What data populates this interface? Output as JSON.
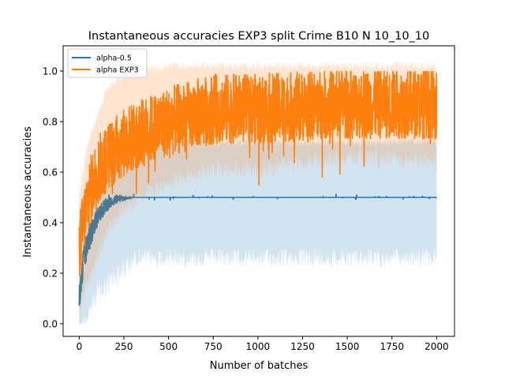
{
  "chart_data": {
    "type": "line",
    "title": "Instantaneous accuracies EXP3 split Crime B10 N 10_10_10",
    "xlabel": "Number of batches",
    "ylabel": "Instantaneous accuracies",
    "xlim": [
      -90,
      2100
    ],
    "ylim": [
      -0.05,
      1.1
    ],
    "xticks": [
      0,
      250,
      500,
      750,
      1000,
      1250,
      1500,
      1750,
      2000
    ],
    "yticks": [
      0.0,
      0.2,
      0.4,
      0.6,
      0.8,
      1.0
    ],
    "xtick_labels": [
      "0",
      "250",
      "500",
      "750",
      "1000",
      "1250",
      "1500",
      "1750",
      "2000"
    ],
    "ytick_labels": [
      "0.0",
      "0.2",
      "0.4",
      "0.6",
      "0.8",
      "1.0"
    ],
    "grid": false,
    "legend_position": "top-left",
    "series": [
      {
        "name": "alpha-0.5",
        "color": "#1f77b4",
        "description_points": [
          {
            "x": 0,
            "mean": 0.1,
            "low": 0.0,
            "high": 0.3
          },
          {
            "x": 25,
            "mean": 0.25,
            "low": 0.05,
            "high": 0.45
          },
          {
            "x": 50,
            "mean": 0.33,
            "low": 0.1,
            "high": 0.5
          },
          {
            "x": 100,
            "mean": 0.42,
            "low": 0.18,
            "high": 0.55
          },
          {
            "x": 150,
            "mean": 0.47,
            "low": 0.2,
            "high": 0.6
          },
          {
            "x": 200,
            "mean": 0.49,
            "low": 0.25,
            "high": 0.65
          },
          {
            "x": 300,
            "mean": 0.5,
            "low": 0.3,
            "high": 0.7
          },
          {
            "x": 1000,
            "mean": 0.5,
            "low": 0.3,
            "high": 0.7
          },
          {
            "x": 2000,
            "mean": 0.5,
            "low": 0.3,
            "high": 0.7
          }
        ]
      },
      {
        "name": "alpha EXP3",
        "color": "#ff7f0e",
        "description_points": [
          {
            "x": 0,
            "mean": 0.3,
            "low": 0.1,
            "high": 0.5
          },
          {
            "x": 25,
            "mean": 0.4,
            "low": 0.15,
            "high": 0.6
          },
          {
            "x": 50,
            "mean": 0.5,
            "low": 0.2,
            "high": 0.7
          },
          {
            "x": 100,
            "mean": 0.6,
            "low": 0.3,
            "high": 0.8
          },
          {
            "x": 150,
            "mean": 0.65,
            "low": 0.4,
            "high": 0.9
          },
          {
            "x": 250,
            "mean": 0.72,
            "low": 0.5,
            "high": 0.97
          },
          {
            "x": 500,
            "mean": 0.8,
            "low": 0.6,
            "high": 1.0
          },
          {
            "x": 750,
            "mean": 0.85,
            "low": 0.65,
            "high": 1.0
          },
          {
            "x": 1000,
            "mean": 0.85,
            "low": 0.65,
            "high": 1.0
          },
          {
            "x": 1500,
            "mean": 0.87,
            "low": 0.7,
            "high": 1.0
          },
          {
            "x": 2000,
            "mean": 0.87,
            "low": 0.68,
            "high": 1.0
          }
        ]
      }
    ]
  }
}
